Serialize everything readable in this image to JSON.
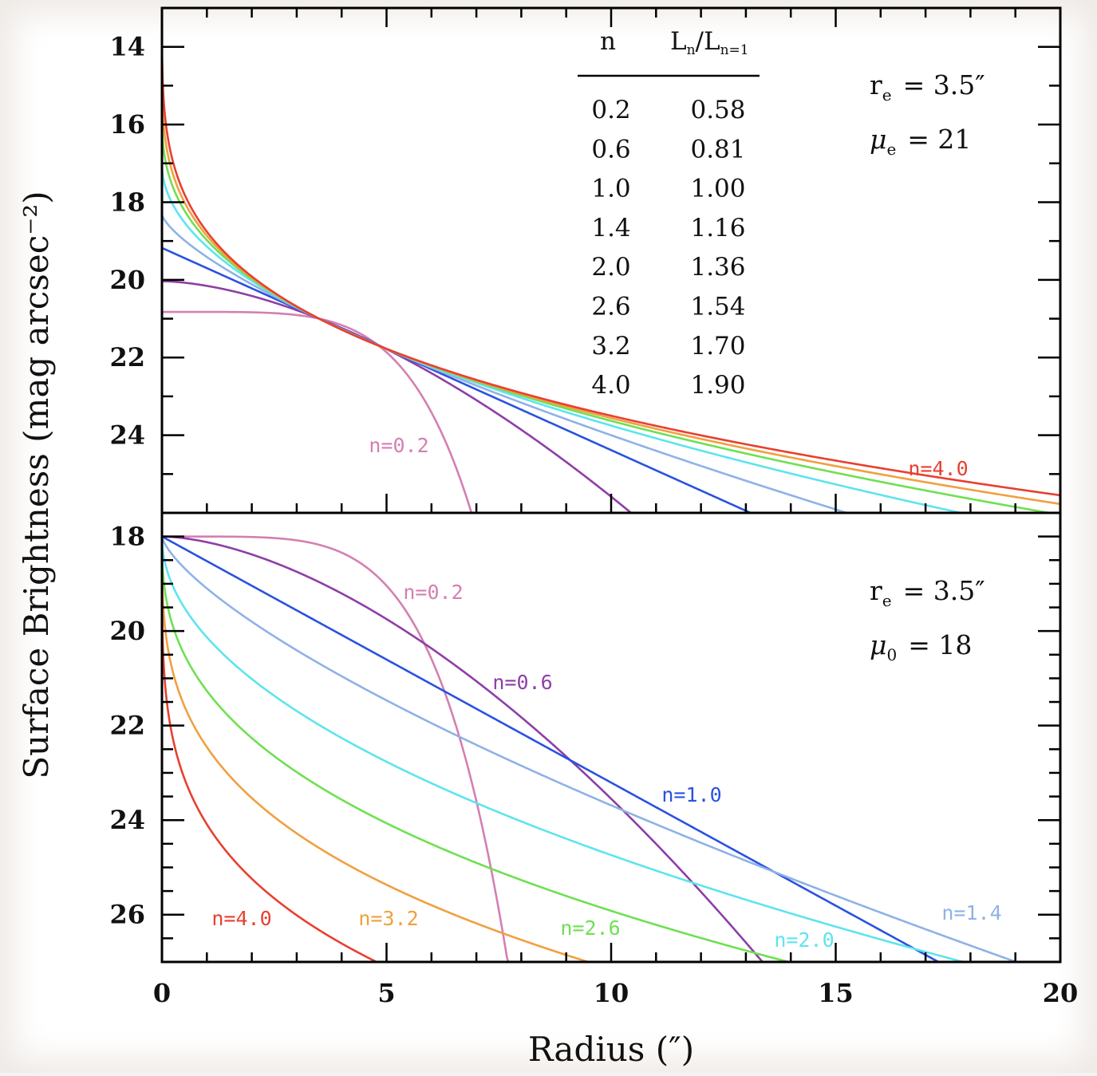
{
  "chart_data": [
    {
      "type": "line",
      "panel": "top",
      "xlim": [
        0,
        20
      ],
      "ylim": [
        26,
        13
      ],
      "yticks": [
        "14",
        "16",
        "18",
        "20",
        "22",
        "24"
      ],
      "xlabel": "Radius (″)",
      "ylabel": "Surface Brightness (mag arcsec⁻²)",
      "params": {
        "re_label": "r",
        "re_sub": "e",
        "re_value": "= 3.5″",
        "mu_label": "μ",
        "mu_sub": "e",
        "mu_value": "= 21"
      },
      "table": {
        "col1": "n",
        "col2": "L",
        "col2_sub1": "n",
        "col2_mid": "/L",
        "col2_sub2": "n=1",
        "rows": [
          [
            "0.2",
            "0.58"
          ],
          [
            "0.6",
            "0.81"
          ],
          [
            "1.0",
            "1.00"
          ],
          [
            "1.4",
            "1.16"
          ],
          [
            "2.0",
            "1.36"
          ],
          [
            "2.6",
            "1.54"
          ],
          [
            "3.2",
            "1.70"
          ],
          [
            "4.0",
            "1.90"
          ]
        ]
      },
      "series": [
        {
          "n": 0.2,
          "color": "#d47fb2"
        },
        {
          "n": 0.6,
          "color": "#8e3ea6"
        },
        {
          "n": 1.0,
          "color": "#2a52e0"
        },
        {
          "n": 1.4,
          "color": "#8fb2e6"
        },
        {
          "n": 2.0,
          "color": "#5ee4ee"
        },
        {
          "n": 2.6,
          "color": "#6fe052"
        },
        {
          "n": 3.2,
          "color": "#f0a040"
        },
        {
          "n": 4.0,
          "color": "#e84030"
        }
      ],
      "curve_labels": [
        {
          "text": "n=0.2",
          "color": "#d47fb2"
        },
        {
          "text": "n=4.0",
          "color": "#e84030"
        }
      ]
    },
    {
      "type": "line",
      "panel": "bottom",
      "xlim": [
        0,
        20
      ],
      "ylim": [
        27,
        17.5
      ],
      "yticks": [
        "18",
        "20",
        "22",
        "24",
        "26"
      ],
      "xticks": [
        "0",
        "5",
        "10",
        "15",
        "20"
      ],
      "params": {
        "re_label": "r",
        "re_sub": "e",
        "re_value": "= 3.5″",
        "mu_label": "μ",
        "mu_sub": "0",
        "mu_value": "= 18"
      },
      "series": [
        {
          "n": 0.2,
          "color": "#d47fb2"
        },
        {
          "n": 0.6,
          "color": "#8e3ea6"
        },
        {
          "n": 1.0,
          "color": "#2a52e0"
        },
        {
          "n": 1.4,
          "color": "#8fb2e6"
        },
        {
          "n": 2.0,
          "color": "#5ee4ee"
        },
        {
          "n": 2.6,
          "color": "#6fe052"
        },
        {
          "n": 3.2,
          "color": "#f0a040"
        },
        {
          "n": 4.0,
          "color": "#e84030"
        }
      ],
      "curve_labels": [
        {
          "text": "n=0.2",
          "color": "#d47fb2"
        },
        {
          "text": "n=0.6",
          "color": "#8e3ea6"
        },
        {
          "text": "n=1.0",
          "color": "#2a52e0"
        },
        {
          "text": "n=1.4",
          "color": "#8fb2e6"
        },
        {
          "text": "n=2.0",
          "color": "#5ee4ee"
        },
        {
          "text": "n=2.6",
          "color": "#6fe052"
        },
        {
          "text": "n=3.2",
          "color": "#f0a040"
        },
        {
          "text": "n=4.0",
          "color": "#e84030"
        }
      ]
    }
  ]
}
